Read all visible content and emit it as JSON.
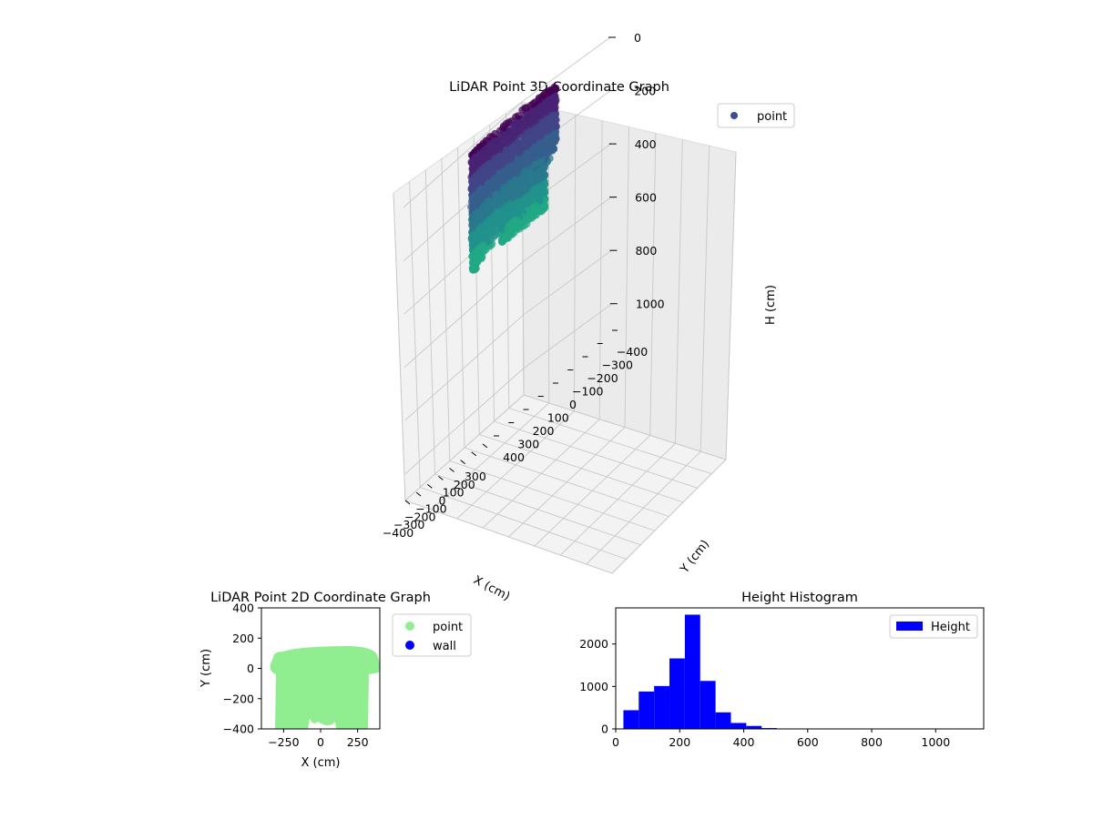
{
  "chart_data": [
    {
      "type": "scatter",
      "title": "LiDAR Point 3D Coordinate Graph",
      "xlabel": "X (cm)",
      "ylabel": "Y (cm)",
      "zlabel": "H (cm)",
      "xlim": [
        -400,
        400
      ],
      "ylim": [
        -400,
        400
      ],
      "zlim": [
        1100,
        0
      ],
      "x_ticks": [
        "−400",
        "−300",
        "−200",
        "−100",
        "0",
        "100",
        "200",
        "300"
      ],
      "y_ticks": [
        "−400",
        "−300",
        "−200",
        "−100",
        "0",
        "100",
        "200",
        "300",
        "400"
      ],
      "z_ticks": [
        "0",
        "200",
        "400",
        "600",
        "800",
        "1000"
      ],
      "colormap": "viridis",
      "grid": true,
      "legend": {
        "placement": "top-right",
        "entries": [
          {
            "name": "point",
            "color": "#3b4d8e"
          }
        ]
      },
      "note": "ring-shaped point cloud (~8000 points); x/y positions range roughly -380..380 cm, height 0..~700 cm, colored by height"
    },
    {
      "type": "scatter",
      "title": "LiDAR Point 2D Coordinate Graph",
      "xlabel": "X (cm)",
      "ylabel": "Y (cm)",
      "xlim": [
        -400,
        400
      ],
      "ylim": [
        -400,
        400
      ],
      "x_ticks": [
        "−250",
        "0",
        "250"
      ],
      "y_ticks": [
        "−400",
        "−200",
        "0",
        "200",
        "400"
      ],
      "legend": {
        "placement": "outside-right",
        "entries": [
          {
            "name": "point",
            "color": "#90ee90"
          },
          {
            "name": "wall",
            "color": "#0000ff"
          }
        ]
      },
      "series": [
        {
          "name": "point",
          "color": "#90ee90",
          "region": "top-down footprint of the point cloud"
        },
        {
          "name": "wall",
          "color": "#0000ff",
          "values": []
        }
      ]
    },
    {
      "type": "bar",
      "title": "Height Histogram",
      "xlim": [
        0,
        1150
      ],
      "ylim": [
        0,
        2850
      ],
      "x_ticks": [
        "0",
        "200",
        "400",
        "600",
        "800",
        "1000"
      ],
      "y_ticks": [
        "0",
        "1000",
        "2000"
      ],
      "bar_color": "#0000ff",
      "legend": {
        "placement": "top-right",
        "entries": [
          {
            "name": "Height",
            "color": "#0000ff"
          }
        ]
      },
      "bin_edges": [
        24,
        72,
        120,
        168,
        216,
        264,
        312,
        360,
        408,
        456,
        504,
        552,
        600,
        648,
        696,
        744,
        792,
        840,
        888,
        936,
        984,
        1032,
        1080
      ],
      "values": [
        440,
        880,
        1010,
        1660,
        2690,
        1130,
        390,
        140,
        70,
        20,
        5,
        3,
        2,
        1,
        1,
        1,
        1,
        1,
        1,
        1,
        1,
        1
      ]
    }
  ]
}
